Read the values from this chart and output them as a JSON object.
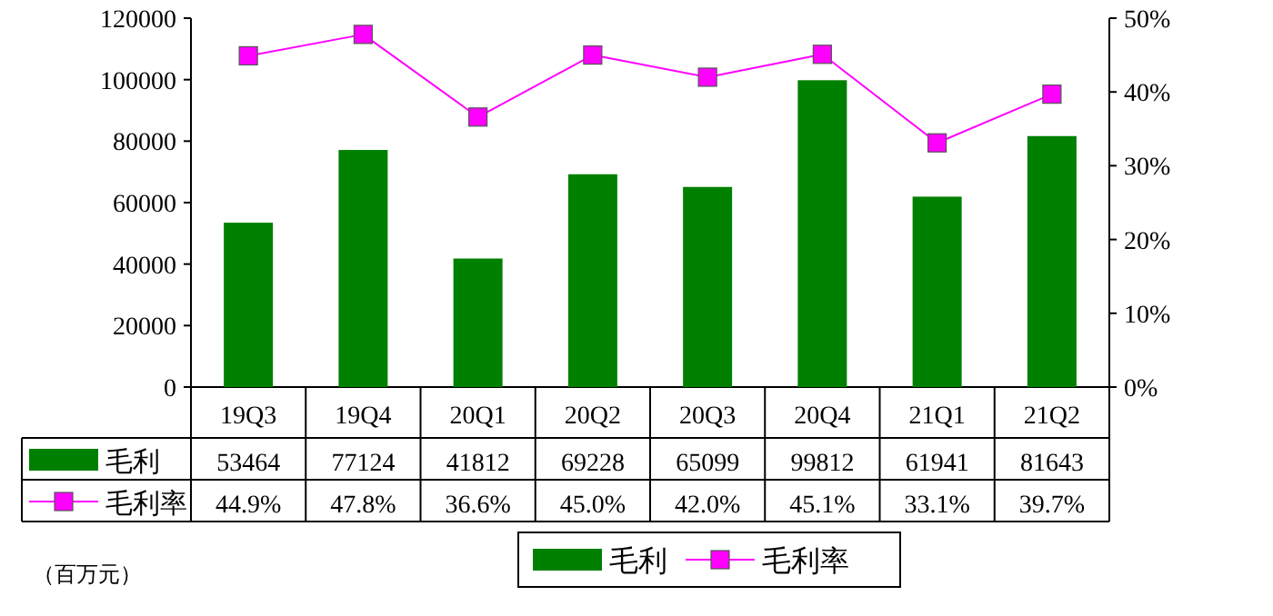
{
  "chart_data": {
    "type": "bar",
    "categories": [
      "19Q3",
      "19Q4",
      "20Q1",
      "20Q2",
      "20Q3",
      "20Q4",
      "21Q1",
      "21Q2"
    ],
    "series": [
      {
        "name": "毛利",
        "color": "#008000",
        "values": [
          53464,
          77124,
          41812,
          69228,
          65099,
          99812,
          61941,
          81643
        ]
      },
      {
        "name": "毛利率",
        "type": "line",
        "axis": "y2",
        "color": "#ff00ff",
        "marker": "square",
        "values": [
          44.9,
          47.8,
          36.6,
          45.0,
          42.0,
          45.1,
          33.1,
          39.7
        ],
        "value_labels": [
          "44.9%",
          "47.8%",
          "36.6%",
          "45.0%",
          "42.0%",
          "45.1%",
          "33.1%",
          "39.7%"
        ]
      }
    ],
    "ylim": [
      0,
      120000
    ],
    "yticks": [
      0,
      20000,
      40000,
      60000,
      80000,
      100000,
      120000
    ],
    "y2lim": [
      0,
      50
    ],
    "y2ticks": [
      {
        "value": 0,
        "label": "0%"
      },
      {
        "value": 10,
        "label": "10%"
      },
      {
        "value": 20,
        "label": "20%"
      },
      {
        "value": 30,
        "label": "30%"
      },
      {
        "value": 40,
        "label": "40%"
      },
      {
        "value": 50,
        "label": "50%"
      }
    ],
    "data_labels": true,
    "grid": false,
    "legend": "bottom",
    "annotations": [
      "（百万元）"
    ]
  }
}
